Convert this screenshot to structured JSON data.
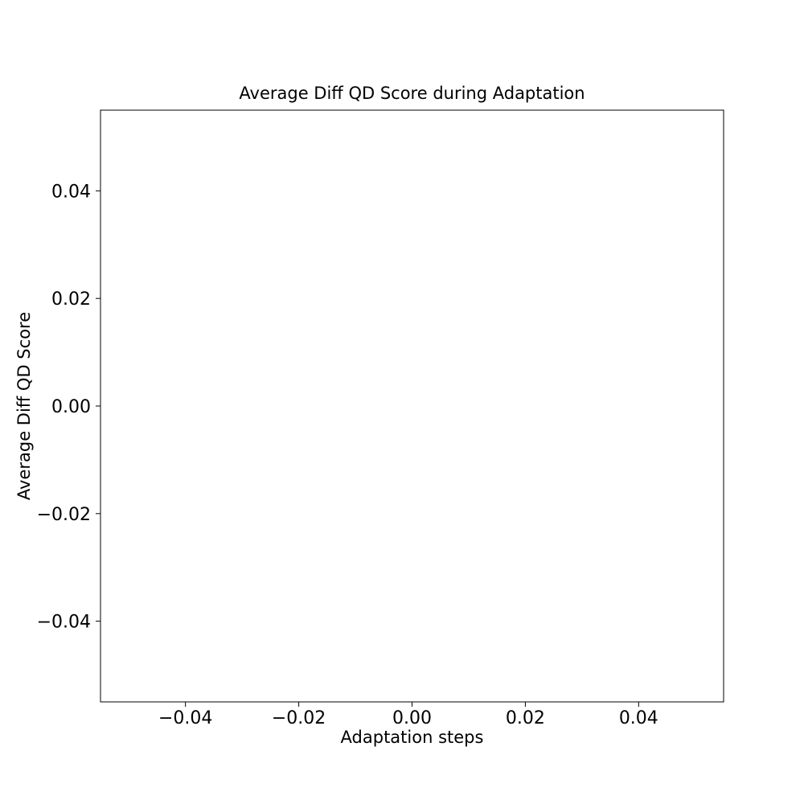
{
  "chart_data": {
    "type": "line",
    "title": "Average Diff QD Score during Adaptation",
    "xlabel": "Adaptation steps",
    "ylabel": "Average Diff QD Score",
    "xlim": [
      -0.055,
      0.055
    ],
    "ylim": [
      -0.055,
      0.055
    ],
    "xticks": [
      -0.04,
      -0.02,
      0.0,
      0.02,
      0.04
    ],
    "yticks": [
      -0.04,
      -0.02,
      0.0,
      0.02,
      0.04
    ],
    "xtick_labels": [
      "−0.04",
      "−0.02",
      "0.00",
      "0.02",
      "0.04"
    ],
    "ytick_labels": [
      "−0.04",
      "−0.02",
      "0.00",
      "0.02",
      "0.04"
    ],
    "grid": false,
    "series": []
  }
}
